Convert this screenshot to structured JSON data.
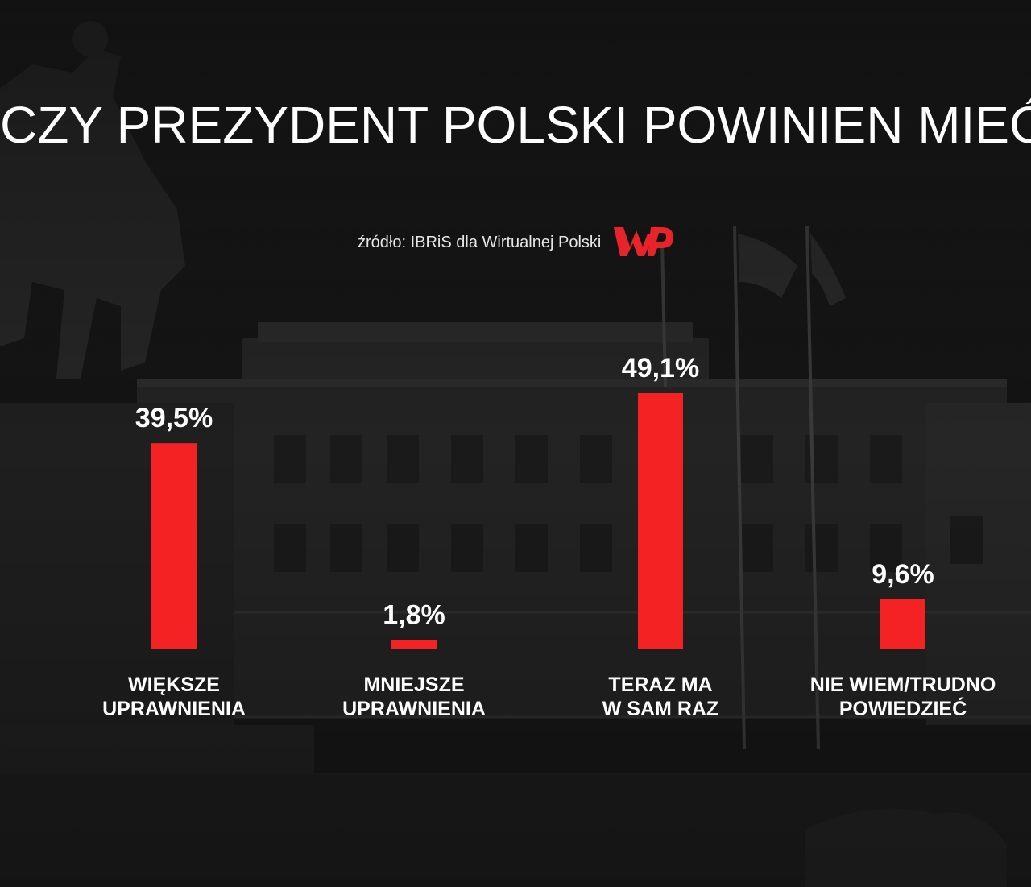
{
  "title": "CZY PREZYDENT POLSKI POWINIEN MIEĆ:",
  "source": "źródło: IBRiS dla Wirtualnej Polski",
  "logo_icon": "wp-logo-icon",
  "colors": {
    "bar": "#f42222",
    "text": "#ffffff",
    "brand": "#e8232a"
  },
  "chart_data": {
    "type": "bar",
    "categories": [
      [
        "WIĘKSZE",
        "UPRAWNIENIA"
      ],
      [
        "MNIEJSZE",
        "UPRAWNIENIA"
      ],
      [
        "TERAZ MA",
        "W SAM RAZ"
      ],
      [
        "NIE WIEM/TRUDNO",
        "POWIEDZIEĆ"
      ]
    ],
    "values": [
      39.5,
      1.8,
      49.1,
      9.6
    ],
    "value_labels": [
      "39,5%",
      "1,8%",
      "49,1%",
      "9,6%"
    ],
    "ylim": [
      0,
      49.1
    ],
    "grid": false
  }
}
